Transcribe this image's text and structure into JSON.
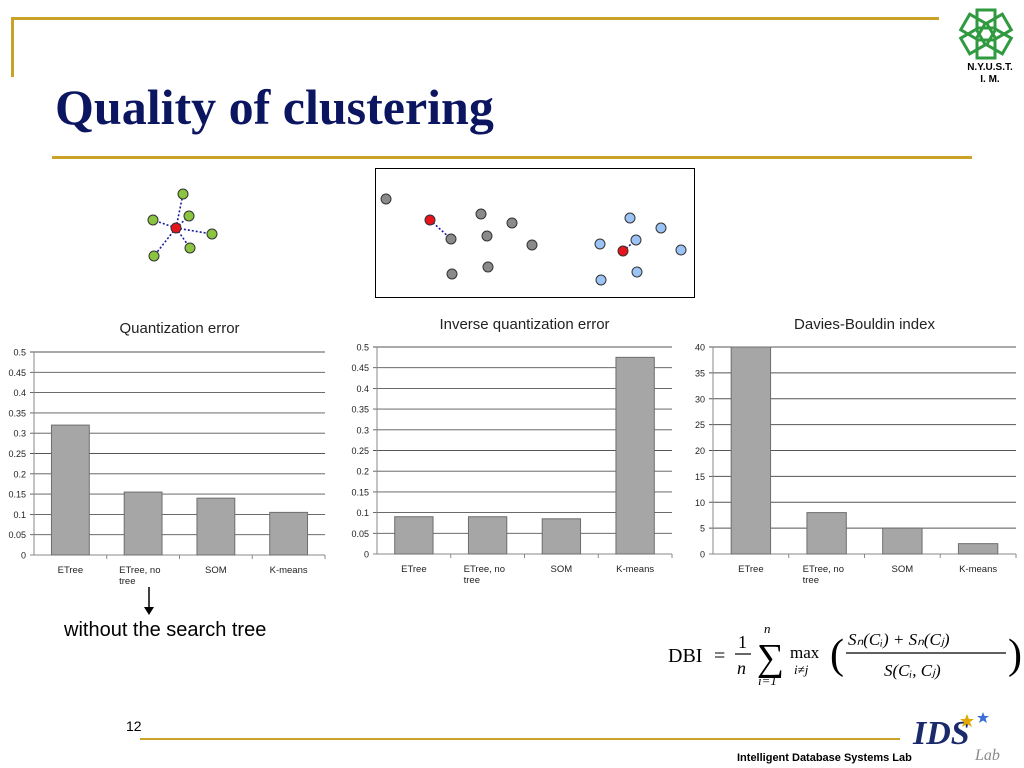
{
  "slide": {
    "title": "Quality of clustering",
    "logo_text_line1": "N.Y.U.S.T.",
    "logo_text_line2": "I. M.",
    "annotation": "without the search tree",
    "page_number": "12",
    "lab_name": "Intelligent Database Systems Lab",
    "lab_logo_text": "IDS",
    "lab_logo_subtext": "Lab"
  },
  "formula": {
    "lhs": "DBI",
    "numerator_1": "1",
    "denominator_n": "n",
    "sum_upper": "n",
    "sum_lower": "i=1",
    "max_label": "max",
    "max_sub": "i≠j",
    "numerator": "Sₙ(Cᵢ) + Sₙ(Cⱼ)",
    "denominator": "S(Cᵢ, Cⱼ)"
  },
  "colors": {
    "title": "#0b1560",
    "accent_rule": "#c9a227",
    "bar_fill": "#a6a6a6",
    "bar_stroke": "#6e6e6e",
    "point_green": "#8bc53f",
    "point_red": "#e8141c",
    "point_gray": "#8a8a8a",
    "point_blue": "#9cc3f5",
    "link_blue": "#1a1aa0"
  },
  "chart_data": [
    {
      "type": "bar",
      "title": "Quantization error",
      "categories": [
        "ETree",
        "ETree, no tree",
        "SOM",
        "K-means"
      ],
      "values": [
        0.32,
        0.155,
        0.14,
        0.105
      ],
      "ylim": [
        0,
        0.5
      ],
      "yticks": [
        "0",
        "0.05",
        "0.1",
        "0.15",
        "0.2",
        "0.25",
        "0.3",
        "0.35",
        "0.4",
        "0.45",
        "0.5"
      ],
      "grid": true
    },
    {
      "type": "bar",
      "title": "Inverse quantization error",
      "categories": [
        "ETree",
        "ETree, no tree",
        "SOM",
        "K-means"
      ],
      "values": [
        0.09,
        0.09,
        0.085,
        0.475
      ],
      "ylim": [
        0,
        0.5
      ],
      "yticks": [
        "0",
        "0.05",
        "0.1",
        "0.15",
        "0.2",
        "0.25",
        "0.3",
        "0.35",
        "0.4",
        "0.45",
        "0.5"
      ],
      "grid": true
    },
    {
      "type": "bar",
      "title": "Davies-Bouldin index",
      "categories": [
        "ETree",
        "ETree, no tree",
        "SOM",
        "K-means"
      ],
      "values": [
        40,
        8,
        5,
        2
      ],
      "ylim": [
        0,
        40
      ],
      "yticks": [
        "0",
        "5",
        "10",
        "15",
        "20",
        "25",
        "30",
        "35",
        "40"
      ],
      "grid": true
    }
  ]
}
